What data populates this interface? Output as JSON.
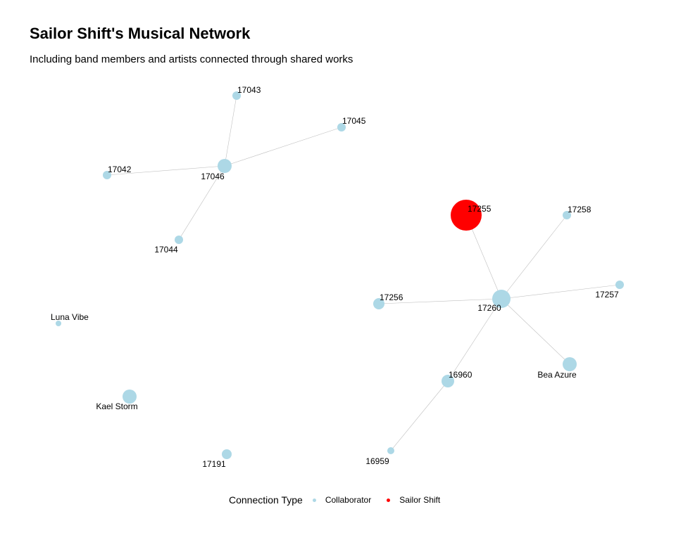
{
  "title": "Sailor Shift's Musical Network",
  "subtitle": "Including band members and artists connected through shared works",
  "legend": {
    "title": "Connection Type",
    "items": [
      {
        "label": "Collaborator",
        "color": "#add8e6"
      },
      {
        "label": "Sailor Shift",
        "color": "#ff0000"
      }
    ]
  },
  "colors": {
    "collaborator": "#add8e6",
    "sailor_shift": "#ff0000",
    "edge": "#bfbfbf"
  },
  "network": {
    "nodes": [
      {
        "id": "17043",
        "label": "17043",
        "type": "Collaborator"
      },
      {
        "id": "17045",
        "label": "17045",
        "type": "Collaborator"
      },
      {
        "id": "17042",
        "label": "17042",
        "type": "Collaborator"
      },
      {
        "id": "17046",
        "label": "17046",
        "type": "Collaborator"
      },
      {
        "id": "17044",
        "label": "17044",
        "type": "Collaborator"
      },
      {
        "id": "17255",
        "label": "17255",
        "type": "Sailor Shift"
      },
      {
        "id": "17258",
        "label": "17258",
        "type": "Collaborator"
      },
      {
        "id": "17257",
        "label": "17257",
        "type": "Collaborator"
      },
      {
        "id": "17256",
        "label": "17256",
        "type": "Collaborator"
      },
      {
        "id": "17260",
        "label": "17260",
        "type": "Collaborator"
      },
      {
        "id": "Luna Vibe",
        "label": "Luna Vibe",
        "type": "Collaborator"
      },
      {
        "id": "Bea Azure",
        "label": "Bea Azure",
        "type": "Collaborator"
      },
      {
        "id": "16960",
        "label": "16960",
        "type": "Collaborator"
      },
      {
        "id": "Kael Storm",
        "label": "Kael Storm",
        "type": "Collaborator"
      },
      {
        "id": "17191",
        "label": "17191",
        "type": "Collaborator"
      },
      {
        "id": "16959",
        "label": "16959",
        "type": "Collaborator"
      }
    ],
    "edges": [
      [
        "17046",
        "17043"
      ],
      [
        "17046",
        "17045"
      ],
      [
        "17046",
        "17042"
      ],
      [
        "17046",
        "17044"
      ],
      [
        "17260",
        "17255"
      ],
      [
        "17260",
        "17258"
      ],
      [
        "17260",
        "17257"
      ],
      [
        "17260",
        "17256"
      ],
      [
        "17260",
        "Bea Azure"
      ],
      [
        "17260",
        "16960"
      ],
      [
        "16960",
        "16959"
      ]
    ]
  }
}
